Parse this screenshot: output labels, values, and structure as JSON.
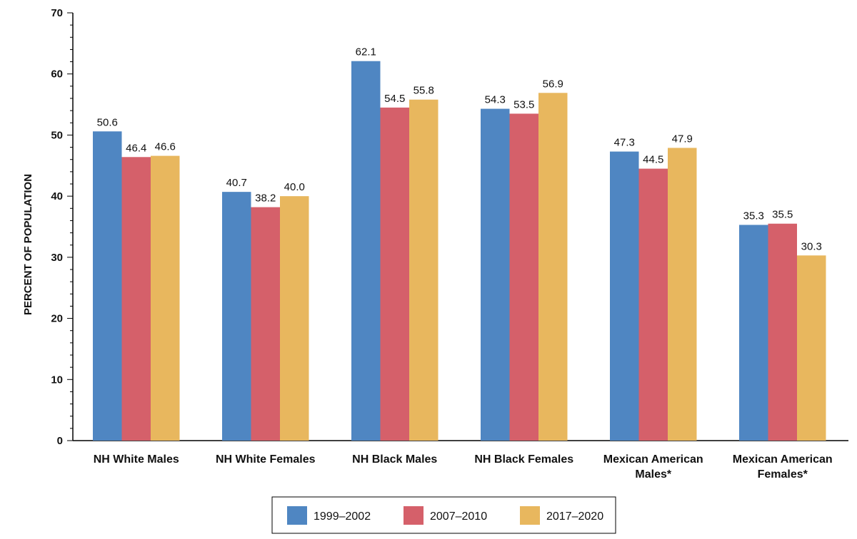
{
  "chart_data": {
    "type": "bar",
    "ylabel": "PERCENT OF POPULATION",
    "xlabel": "",
    "ylim": [
      0,
      70
    ],
    "yticks": [
      0,
      10,
      20,
      30,
      40,
      50,
      60,
      70
    ],
    "categories": [
      [
        "NH White Males"
      ],
      [
        "NH White Females"
      ],
      [
        "NH Black Males"
      ],
      [
        "NH Black Females"
      ],
      [
        "Mexican American",
        "Males*"
      ],
      [
        "Mexican American",
        "Females*"
      ]
    ],
    "series": [
      {
        "name": "1999–2002",
        "color": "#4f86c2",
        "values": [
          50.6,
          40.7,
          62.1,
          54.3,
          47.3,
          35.3
        ]
      },
      {
        "name": "2007–2010",
        "color": "#d5606a",
        "values": [
          46.4,
          38.2,
          54.5,
          53.5,
          44.5,
          35.5
        ]
      },
      {
        "name": "2017–2020",
        "color": "#e8b75e",
        "values": [
          46.6,
          40.0,
          55.8,
          56.9,
          47.9,
          30.3
        ]
      }
    ],
    "grid": false,
    "legend_position": "bottom"
  }
}
